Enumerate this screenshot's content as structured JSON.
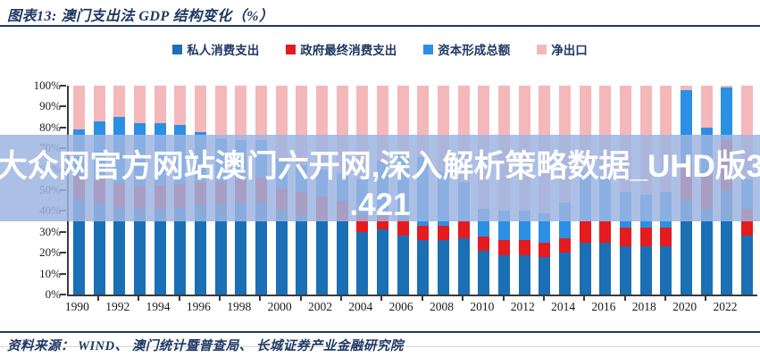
{
  "figure": {
    "title": "图表13:  澳门支出法 GDP 结构变化（%）"
  },
  "watermark": {
    "line1": "大众网官方网站澳门六开网,深入解析策略数据_UHD版3",
    "line2": ".421"
  },
  "source_line": "资料来源：  WIND、 澳门统计暨普查局、 长城证券产业金融研究院",
  "colors": {
    "navy": "#1F3864",
    "axis": "#3a3a3a",
    "watermark_band": "rgba(158,181,226,0.85)",
    "watermark_text": "#FFFFFF"
  },
  "chart_data": {
    "type": "bar",
    "stacked": true,
    "title": "澳门支出法 GDP 结构变化（%）",
    "xlabel": "",
    "ylabel": "",
    "ylim": [
      0,
      100
    ],
    "grid": false,
    "legend_position": "top",
    "yticks": [
      "0%",
      "10%",
      "20%",
      "30%",
      "40%",
      "50%",
      "60%",
      "70%",
      "80%",
      "90%",
      "100%"
    ],
    "xtick_labels": [
      "1990",
      "1992",
      "1994",
      "1996",
      "1998",
      "2000",
      "2002",
      "2004",
      "2006",
      "2008",
      "2010",
      "2012",
      "2014",
      "2016",
      "2018",
      "2020",
      "2022"
    ],
    "x": [
      "1990",
      "1991",
      "1992",
      "1993",
      "1994",
      "1995",
      "1996",
      "1997",
      "1998",
      "1999",
      "2000",
      "2001",
      "2002",
      "2003",
      "2004",
      "2005",
      "2006",
      "2007",
      "2008",
      "2009",
      "2010",
      "2011",
      "2012",
      "2013",
      "2014",
      "2015",
      "2016",
      "2017",
      "2018",
      "2019",
      "2020",
      "2021",
      "2022",
      "2023"
    ],
    "series": [
      {
        "name": "私人消费支出",
        "color": "#1B6FB5",
        "values": [
          46,
          44,
          42,
          41,
          41,
          42,
          43,
          43,
          44,
          44,
          40,
          38,
          36,
          35,
          30,
          31,
          28,
          26,
          26,
          27,
          21,
          19,
          19,
          18,
          20,
          25,
          25,
          23,
          23,
          23,
          45,
          41,
          50,
          28
        ]
      },
      {
        "name": "政府最终消费支出",
        "color": "#E41B1F",
        "values": [
          11,
          11,
          11,
          11,
          11,
          11,
          11,
          11,
          11,
          12,
          11,
          11,
          11,
          10,
          8,
          8,
          8,
          7,
          7,
          8,
          7,
          7,
          7,
          7,
          7,
          10,
          10,
          9,
          9,
          9,
          18,
          17,
          24,
          13
        ]
      },
      {
        "name": "资本形成总额",
        "color": "#2B90E3",
        "values": [
          22,
          28,
          32,
          30,
          30,
          28,
          24,
          21,
          19,
          18,
          14,
          13,
          13,
          13,
          17,
          25,
          32,
          33,
          26,
          19,
          13,
          14,
          14,
          14,
          17,
          23,
          21,
          17,
          16,
          17,
          35,
          22,
          25,
          14
        ]
      },
      {
        "name": "净出口",
        "color": "#F5B8BA",
        "values": [
          21,
          17,
          15,
          18,
          18,
          19,
          22,
          25,
          26,
          26,
          35,
          38,
          40,
          42,
          45,
          36,
          32,
          34,
          41,
          46,
          59,
          60,
          60,
          61,
          56,
          42,
          44,
          51,
          52,
          51,
          2,
          20,
          1,
          45
        ]
      }
    ]
  }
}
